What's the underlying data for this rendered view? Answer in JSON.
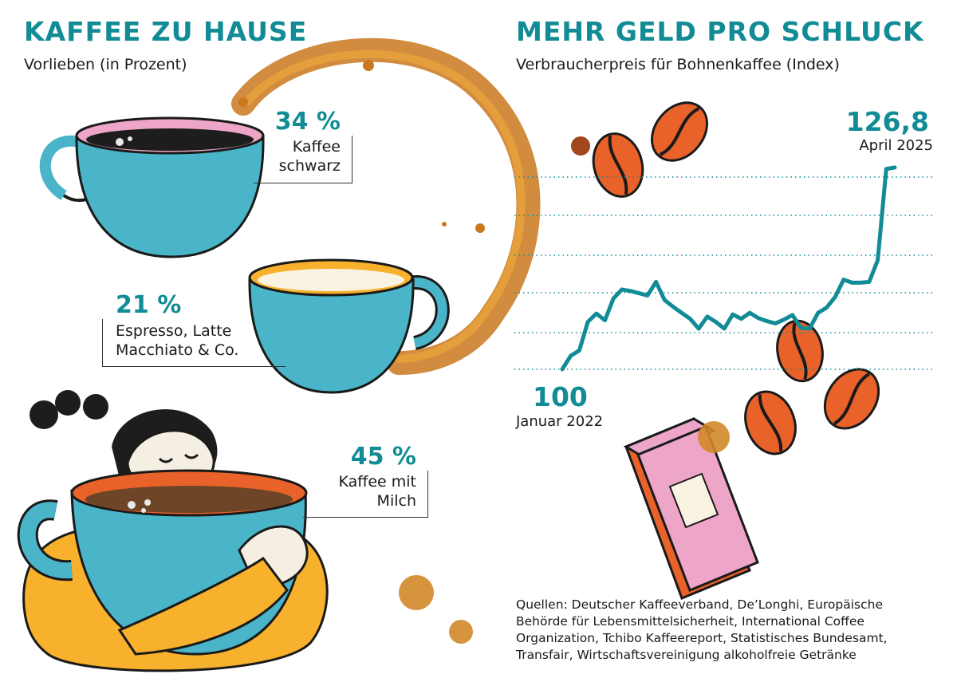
{
  "left": {
    "title": "KAFFEE ZU HAUSE",
    "subtitle": "Vorlieben (in Prozent)",
    "items": [
      {
        "pct": "34 %",
        "label": "Kaffee\nschwarz",
        "value": 34
      },
      {
        "pct": "21 %",
        "label": "Espresso, Latte\nMacchiato & Co.",
        "value": 21
      },
      {
        "pct": "45 %",
        "label": "Kaffee mit\nMilch",
        "value": 45
      }
    ]
  },
  "right": {
    "title": "MEHR GELD PRO SCHLUCK",
    "subtitle": "Verbraucherpreis für Bohnenkaffee (Index)",
    "start_value": "100",
    "start_date": "Januar 2022",
    "end_value": "126,8",
    "end_date": "April 2025"
  },
  "sources": [
    "Quellen: Deutscher Kaffeeverband, De’Longhi, Europäische",
    "Behörde für Lebensmittelsicherheit, International Coffee",
    "Organization, Tchibo Kaffeereport, Statistisches Bundesamt,",
    "Transfair, Wirtschaftsvereinigung alkoholfreie Getränke"
  ],
  "colors": {
    "accent": "#118c96",
    "cup": "#4ab5c8",
    "bean": "#e8622a",
    "bag": "#eea6c8",
    "sweater": "#f7b12d",
    "stain": "#d2882a"
  },
  "chart_data": [
    {
      "type": "pie",
      "title": "KAFFEE ZU HAUSE",
      "subtitle": "Vorlieben (in Prozent)",
      "categories": [
        "Kaffee schwarz",
        "Espresso, Latte Macchiato & Co.",
        "Kaffee mit Milch"
      ],
      "values": [
        34,
        21,
        45
      ]
    },
    {
      "type": "line",
      "title": "MEHR GELD PRO SCHLUCK",
      "subtitle": "Verbraucherpreis für Bohnenkaffee (Index)",
      "grid": true,
      "ylim": [
        100,
        127
      ],
      "series": [
        {
          "values": [
            100,
            101.8,
            102.5,
            106.3,
            107.4,
            106.5,
            109.4,
            110.6,
            110.4,
            110.1,
            109.8,
            111.6,
            109.2,
            108.3,
            107.5,
            106.7,
            105.4,
            107,
            106.3,
            105.4,
            107.3,
            106.7,
            107.5,
            106.8,
            106.4,
            106.1,
            106.6,
            107.2,
            105.5,
            105.4,
            107.5,
            108.2,
            109.6,
            111.9,
            111.5,
            111.5,
            111.6,
            114.5,
            126.6,
            126.8
          ]
        }
      ]
    }
  ]
}
